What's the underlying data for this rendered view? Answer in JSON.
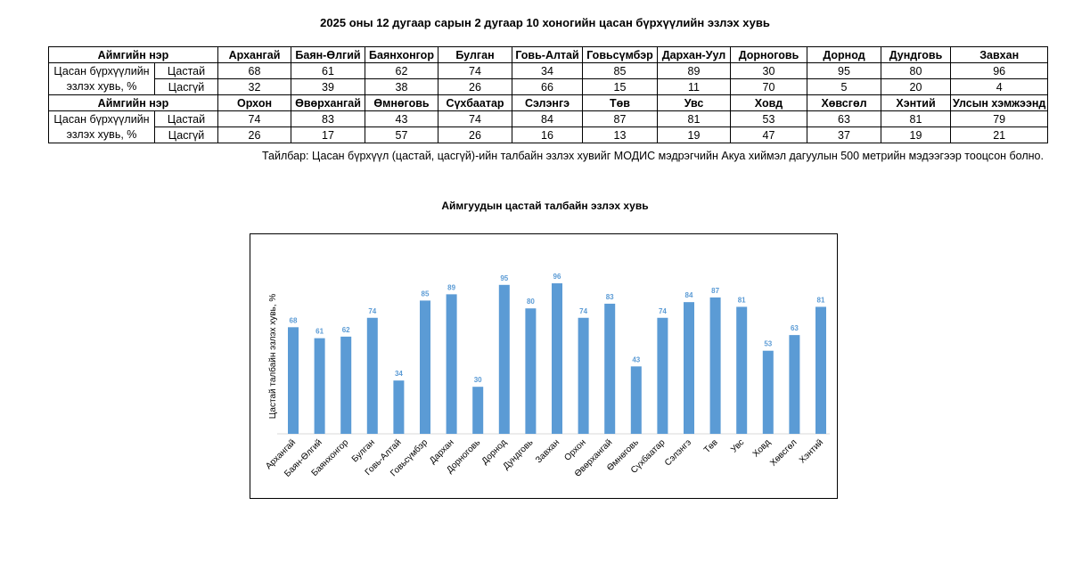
{
  "title": "2025 оны 12 дугаар сарын 2 дугаар 10 хоногийн цасан бүрхүүлийн эзлэх хувь",
  "table": {
    "header_label": "Аймгийн нэр",
    "row_label": "Цасан бүрхүүлийн эзлэх хувь, %",
    "row_label_1": "Цасан бүрхүүлийн",
    "row_label_2": "эзлэх хувь, %",
    "snow": "Цастай",
    "nosnow": "Цасгүй",
    "blocks": [
      {
        "names": [
          "Архангай",
          "Баян-Өлгий",
          "Баянхонгор",
          "Булган",
          "Говь-Алтай",
          "Говьсүмбэр",
          "Дархан-Уул",
          "Дорноговь",
          "Дорнод",
          "Дундговь",
          "Завхан"
        ],
        "snow": [
          "68",
          "61",
          "62",
          "74",
          "34",
          "85",
          "89",
          "30",
          "95",
          "80",
          "96"
        ],
        "nosnow": [
          "32",
          "39",
          "38",
          "26",
          "66",
          "15",
          "11",
          "70",
          "5",
          "20",
          "4"
        ]
      },
      {
        "names": [
          "Орхон",
          "Өвөрхангай",
          "Өмнөговь",
          "Сүхбаатар",
          "Сэлэнгэ",
          "Төв",
          "Увс",
          "Ховд",
          "Хөвсгөл",
          "Хэнтий",
          "Улсын хэмжээнд"
        ],
        "snow": [
          "74",
          "83",
          "43",
          "74",
          "84",
          "87",
          "81",
          "53",
          "63",
          "81",
          "79"
        ],
        "nosnow": [
          "26",
          "17",
          "57",
          "26",
          "16",
          "13",
          "19",
          "47",
          "37",
          "19",
          "21"
        ]
      }
    ]
  },
  "note": "Тайлбар: Цасан бүрхүүл (цастай, цасгүй)-ийн талбайн эзлэх хувийг МОДИС мэдрэгчийн Акуа хиймэл дагуулын 500 метрийн мэдээгээр тооцсон болно.",
  "chart_data": {
    "type": "bar",
    "title": "Аймгуудын цастай талбайн эзлэх хувь",
    "ylabel": "Цастай талбайн эзлэх хувь, %",
    "xlabel": "",
    "ylim": [
      0,
      100
    ],
    "grid": false,
    "bar_color": "#5B9BD5",
    "categories": [
      "Архангай",
      "Баян-Өлгий",
      "Баянхонгор",
      "Булган",
      "Говь-Алтай",
      "Говьсүмбэр",
      "Дархан",
      "Дорноговь",
      "Дорнод",
      "Дундговь",
      "Завхан",
      "Орхон",
      "Өвөрхангай",
      "Өмнөговь",
      "Сүхбаатар",
      "Сэлэнгэ",
      "Төв",
      "Увс",
      "Ховд",
      "Хөвсгөл",
      "Хэнтий"
    ],
    "values": [
      68,
      61,
      62,
      74,
      34,
      85,
      89,
      30,
      95,
      80,
      96,
      74,
      83,
      43,
      74,
      84,
      87,
      81,
      53,
      63,
      81
    ]
  }
}
